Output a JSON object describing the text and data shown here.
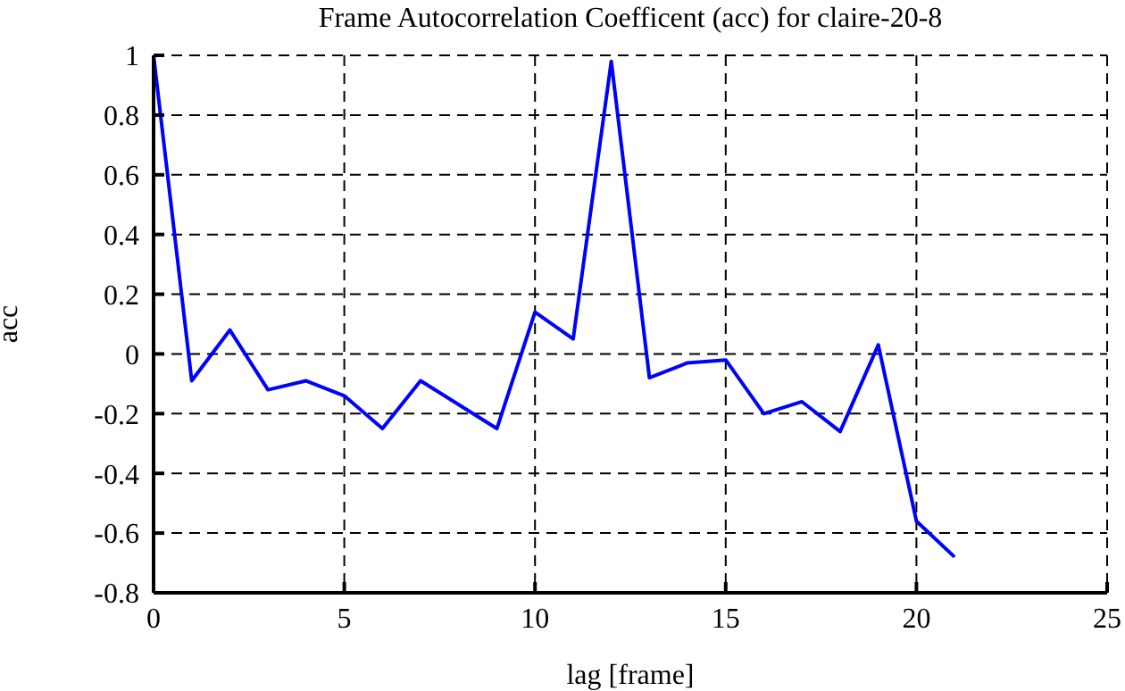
{
  "chart_data": {
    "type": "line",
    "title": "Frame Autocorrelation Coefficent (acc) for claire-20-8",
    "xlabel": "lag [frame]",
    "ylabel": "acc",
    "x": [
      0,
      1,
      2,
      3,
      4,
      5,
      6,
      7,
      8,
      9,
      10,
      11,
      12,
      13,
      14,
      15,
      16,
      17,
      18,
      19,
      20,
      21
    ],
    "series": [
      {
        "color": "#0000ff",
        "values": [
          1,
          -0.09,
          0.08,
          -0.12,
          -0.09,
          -0.14,
          -0.25,
          -0.09,
          -0.17,
          -0.25,
          0.14,
          0.05,
          0.98,
          -0.08,
          -0.03,
          -0.02,
          -0.2,
          -0.16,
          -0.26,
          0.03,
          -0.56,
          -0.68
        ]
      }
    ],
    "xlim": [
      0,
      25
    ],
    "xticks": [
      0,
      5,
      10,
      15,
      20,
      25
    ],
    "ylim": [
      -0.8,
      1
    ],
    "yticks": [
      -0.8,
      -0.6,
      -0.4,
      -0.2,
      0,
      0.2,
      0.4,
      0.6,
      0.8,
      1
    ],
    "grid": true,
    "line_style": "solid",
    "marker": "none",
    "legend": false
  }
}
